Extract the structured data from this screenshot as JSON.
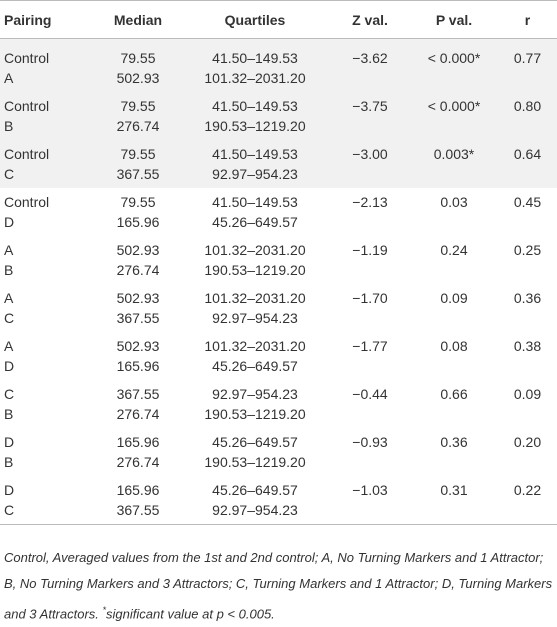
{
  "table": {
    "header": [
      "Pairing",
      "Median",
      "Quartiles",
      "Z val.",
      "P val.",
      "r"
    ],
    "rows": [
      [
        [
          "Control",
          "A"
        ],
        [
          "79.55",
          "502.93"
        ],
        [
          "41.50–149.53",
          "101.32–2031.20"
        ],
        "−3.62",
        "< 0.000*",
        "0.77"
      ],
      [
        [
          "Control",
          "B"
        ],
        [
          "79.55",
          "276.74"
        ],
        [
          "41.50–149.53",
          "190.53–1219.20"
        ],
        "−3.75",
        "< 0.000*",
        "0.80"
      ],
      [
        [
          "Control",
          "C"
        ],
        [
          "79.55",
          "367.55"
        ],
        [
          "41.50–149.53",
          "92.97–954.23"
        ],
        "−3.00",
        "0.003*",
        "0.64"
      ],
      [
        [
          "Control",
          "D"
        ],
        [
          "79.55",
          "165.96"
        ],
        [
          "41.50–149.53",
          "45.26–649.57"
        ],
        "−2.13",
        "0.03",
        "0.45"
      ],
      [
        [
          "A",
          "B"
        ],
        [
          "502.93",
          "276.74"
        ],
        [
          "101.32–2031.20",
          "190.53–1219.20"
        ],
        "−1.19",
        "0.24",
        "0.25"
      ],
      [
        [
          "A",
          "C"
        ],
        [
          "502.93",
          "367.55"
        ],
        [
          "101.32–2031.20",
          "92.97–954.23"
        ],
        "−1.70",
        "0.09",
        "0.36"
      ],
      [
        [
          "A",
          "D"
        ],
        [
          "502.93",
          "165.96"
        ],
        [
          "101.32–2031.20",
          "45.26–649.57"
        ],
        "−1.77",
        "0.08",
        "0.38"
      ],
      [
        [
          "C",
          "B"
        ],
        [
          "367.55",
          "276.74"
        ],
        [
          "92.97–954.23",
          "190.53–1219.20"
        ],
        "−0.44",
        "0.66",
        "0.09"
      ],
      [
        [
          "D",
          "B"
        ],
        [
          "165.96",
          "276.74"
        ],
        [
          "45.26–649.57",
          "190.53–1219.20"
        ],
        "−0.93",
        "0.36",
        "0.20"
      ],
      [
        [
          "D",
          "C"
        ],
        [
          "165.96",
          "367.55"
        ],
        [
          "45.26–649.57",
          "92.97–954.23"
        ],
        "−1.03",
        "0.31",
        "0.22"
      ]
    ],
    "footnote": {
      "text": "Control, Averaged values from the 1st and 2nd control; A, No Turning Markers and 1 Attractor; B, No Turning Markers and 3 Attractors; C, Turning Markers and 1 Attractor; D, Turning Markers and 3 Attractors. ",
      "mark": "*",
      "significance": "significant value at p < 0.005."
    }
  }
}
